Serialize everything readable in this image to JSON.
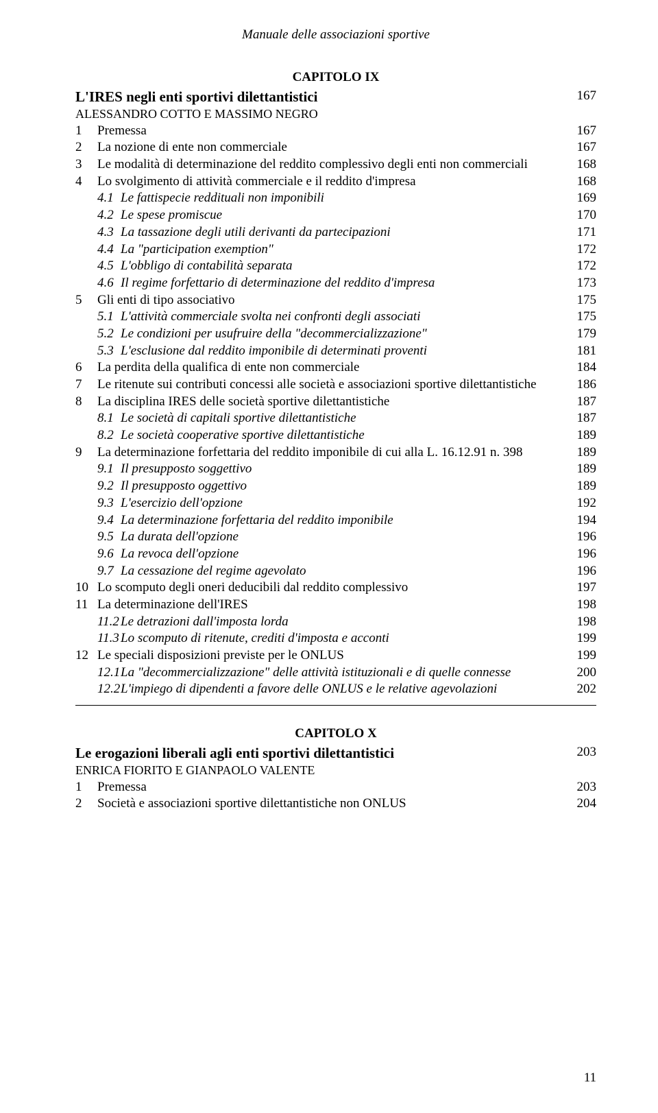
{
  "running_head": "Manuale delle associazioni sportive",
  "page_number": "11",
  "colors": {
    "text": "#000000",
    "background": "#ffffff"
  },
  "typography": {
    "body_family": "Times New Roman",
    "body_size_pt": 14,
    "chapter_head_size_pt": 14,
    "title_size_pt": 16,
    "italic_sublevels": true
  },
  "chapters": [
    {
      "heading": "CAPITOLO IX",
      "title": {
        "label": "L'IRES negli enti sportivi dilettantistici",
        "page": "167"
      },
      "author": "ALESSANDRO COTTO E MASSIMO NEGRO",
      "entries": [
        {
          "lvl": 0,
          "num": "1",
          "label": "Premessa",
          "page": "167"
        },
        {
          "lvl": 0,
          "num": "2",
          "label": "La nozione di ente non commerciale",
          "page": "167"
        },
        {
          "lvl": 0,
          "num": "3",
          "label": "Le modalità di determinazione del reddito complessivo degli enti non commerciali",
          "page": "168"
        },
        {
          "lvl": 0,
          "num": "4",
          "label": "Lo svolgimento di attività commerciale e il reddito d'impresa",
          "page": "168"
        },
        {
          "lvl": 1,
          "num": "4.1",
          "label": "Le fattispecie reddituali non imponibili",
          "page": "169"
        },
        {
          "lvl": 1,
          "num": "4.2",
          "label": "Le spese promiscue",
          "page": "170"
        },
        {
          "lvl": 1,
          "num": "4.3",
          "label": "La tassazione degli utili derivanti da partecipazioni",
          "page": "171"
        },
        {
          "lvl": 1,
          "num": "4.4",
          "label": "La \"participation exemption\"",
          "page": "172"
        },
        {
          "lvl": 1,
          "num": "4.5",
          "label": "L'obbligo di contabilità separata",
          "page": "172"
        },
        {
          "lvl": 1,
          "num": "4.6",
          "label": "Il regime forfettario di determinazione del reddito d'impresa",
          "page": "173"
        },
        {
          "lvl": 0,
          "num": "5",
          "label": "Gli enti di tipo associativo",
          "page": "175"
        },
        {
          "lvl": 1,
          "num": "5.1",
          "label": "L'attività commerciale svolta nei confronti degli associati",
          "page": "175"
        },
        {
          "lvl": 1,
          "num": "5.2",
          "label": "Le condizioni per usufruire della \"decommercializzazione\"",
          "page": "179"
        },
        {
          "lvl": 1,
          "num": "5.3",
          "label": "L'esclusione dal reddito imponibile di determinati proventi",
          "page": "181"
        },
        {
          "lvl": 0,
          "num": "6",
          "label": "La perdita della qualifica di ente non commerciale",
          "page": "184"
        },
        {
          "lvl": 0,
          "num": "7",
          "label": "Le ritenute sui contributi concessi alle società e associazioni sportive dilettantistiche",
          "page": "186"
        },
        {
          "lvl": 0,
          "num": "8",
          "label": "La disciplina IRES delle società sportive dilettantistiche",
          "page": "187"
        },
        {
          "lvl": 1,
          "num": "8.1",
          "label": "Le società di capitali sportive dilettantistiche",
          "page": "187"
        },
        {
          "lvl": 1,
          "num": "8.2",
          "label": "Le società cooperative sportive dilettantistiche",
          "page": "189"
        },
        {
          "lvl": 0,
          "num": "9",
          "label": "La determinazione forfettaria del reddito imponibile di cui alla L. 16.12.91 n. 398",
          "page": "189"
        },
        {
          "lvl": 1,
          "num": "9.1",
          "label": "Il presupposto soggettivo",
          "page": "189"
        },
        {
          "lvl": 1,
          "num": "9.2",
          "label": "Il presupposto oggettivo",
          "page": "189"
        },
        {
          "lvl": 1,
          "num": "9.3",
          "label": "L'esercizio dell'opzione",
          "page": "192"
        },
        {
          "lvl": 1,
          "num": "9.4",
          "label": "La determinazione forfettaria del reddito imponibile",
          "page": "194"
        },
        {
          "lvl": 1,
          "num": "9.5",
          "label": "La durata dell'opzione",
          "page": "196"
        },
        {
          "lvl": 1,
          "num": "9.6",
          "label": "La revoca dell'opzione",
          "page": "196"
        },
        {
          "lvl": 1,
          "num": "9.7",
          "label": "La cessazione del regime agevolato",
          "page": "196"
        },
        {
          "lvl": 0,
          "num": "10",
          "label": "Lo scomputo degli oneri deducibili dal reddito complessivo",
          "page": "197"
        },
        {
          "lvl": 0,
          "num": "11",
          "label": "La determinazione dell'IRES",
          "page": "198"
        },
        {
          "lvl": 1,
          "num": "11.2",
          "label": "Le detrazioni dall'imposta lorda",
          "page": "198"
        },
        {
          "lvl": 1,
          "num": "11.3",
          "label": "Lo scomputo di ritenute, crediti d'imposta e acconti",
          "page": "199"
        },
        {
          "lvl": 0,
          "num": "12",
          "label": "Le speciali disposizioni previste per le ONLUS",
          "page": "199"
        },
        {
          "lvl": 1,
          "num": "12.1",
          "label": "La \"decommercializzazione\" delle attività istituzionali e di quelle connesse",
          "page": "200"
        },
        {
          "lvl": 1,
          "num": "12.2",
          "label": "L'impiego di dipendenti a favore delle ONLUS e le relative agevolazioni",
          "page": "202"
        }
      ]
    },
    {
      "heading": "CAPITOLO X",
      "title": {
        "label": "Le erogazioni liberali agli enti sportivi dilettantistici",
        "page": "203"
      },
      "author": "ENRICA FIORITO E GIANPAOLO VALENTE",
      "entries": [
        {
          "lvl": 0,
          "num": "1",
          "label": "Premessa",
          "page": "203"
        },
        {
          "lvl": 0,
          "num": "2",
          "label": "Società e associazioni sportive dilettantistiche non ONLUS",
          "page": "204"
        }
      ]
    }
  ]
}
